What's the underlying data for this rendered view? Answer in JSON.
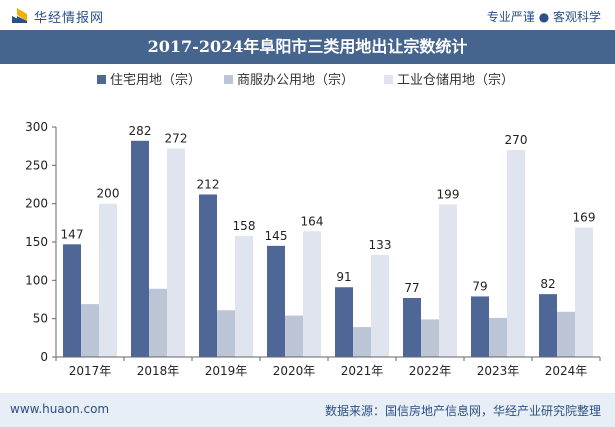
{
  "header": {
    "site_name": "华经情报网",
    "tagline": "专业严谨 ● 客观科学"
  },
  "footer": {
    "url": "www.huaon.com",
    "source": "数据来源：国信房地产信息网，华经产业研究院整理"
  },
  "colors": {
    "title_bar": "#45658f",
    "brand_text": "#2b4f86",
    "footer_bg": "#e8eef6"
  },
  "chart_data": {
    "type": "bar",
    "title": "2017-2024年阜阳市三类用地出让宗数统计",
    "xlabel": "",
    "ylabel": "",
    "categories": [
      "2017年",
      "2018年",
      "2019年",
      "2020年",
      "2021年",
      "2022年",
      "2023年",
      "2024年"
    ],
    "series": [
      {
        "name": "住宅用地（宗）",
        "color": "#4e6797",
        "values": [
          147,
          282,
          212,
          145,
          91,
          77,
          79,
          82
        ],
        "labels": true
      },
      {
        "name": "商服办公用地（宗）",
        "color": "#bcc5d6",
        "values": [
          69,
          89,
          61,
          54,
          39,
          49,
          51,
          59
        ],
        "labels": false
      },
      {
        "name": "工业仓储用地（宗）",
        "color": "#dfe4ef",
        "values": [
          200,
          272,
          158,
          164,
          133,
          199,
          270,
          169
        ],
        "labels": true
      }
    ],
    "yticks": [
      "0",
      "50",
      "100",
      "150",
      "200",
      "250",
      "300"
    ],
    "ylim": [
      0,
      300
    ],
    "grid": false,
    "legend": "top-center"
  }
}
